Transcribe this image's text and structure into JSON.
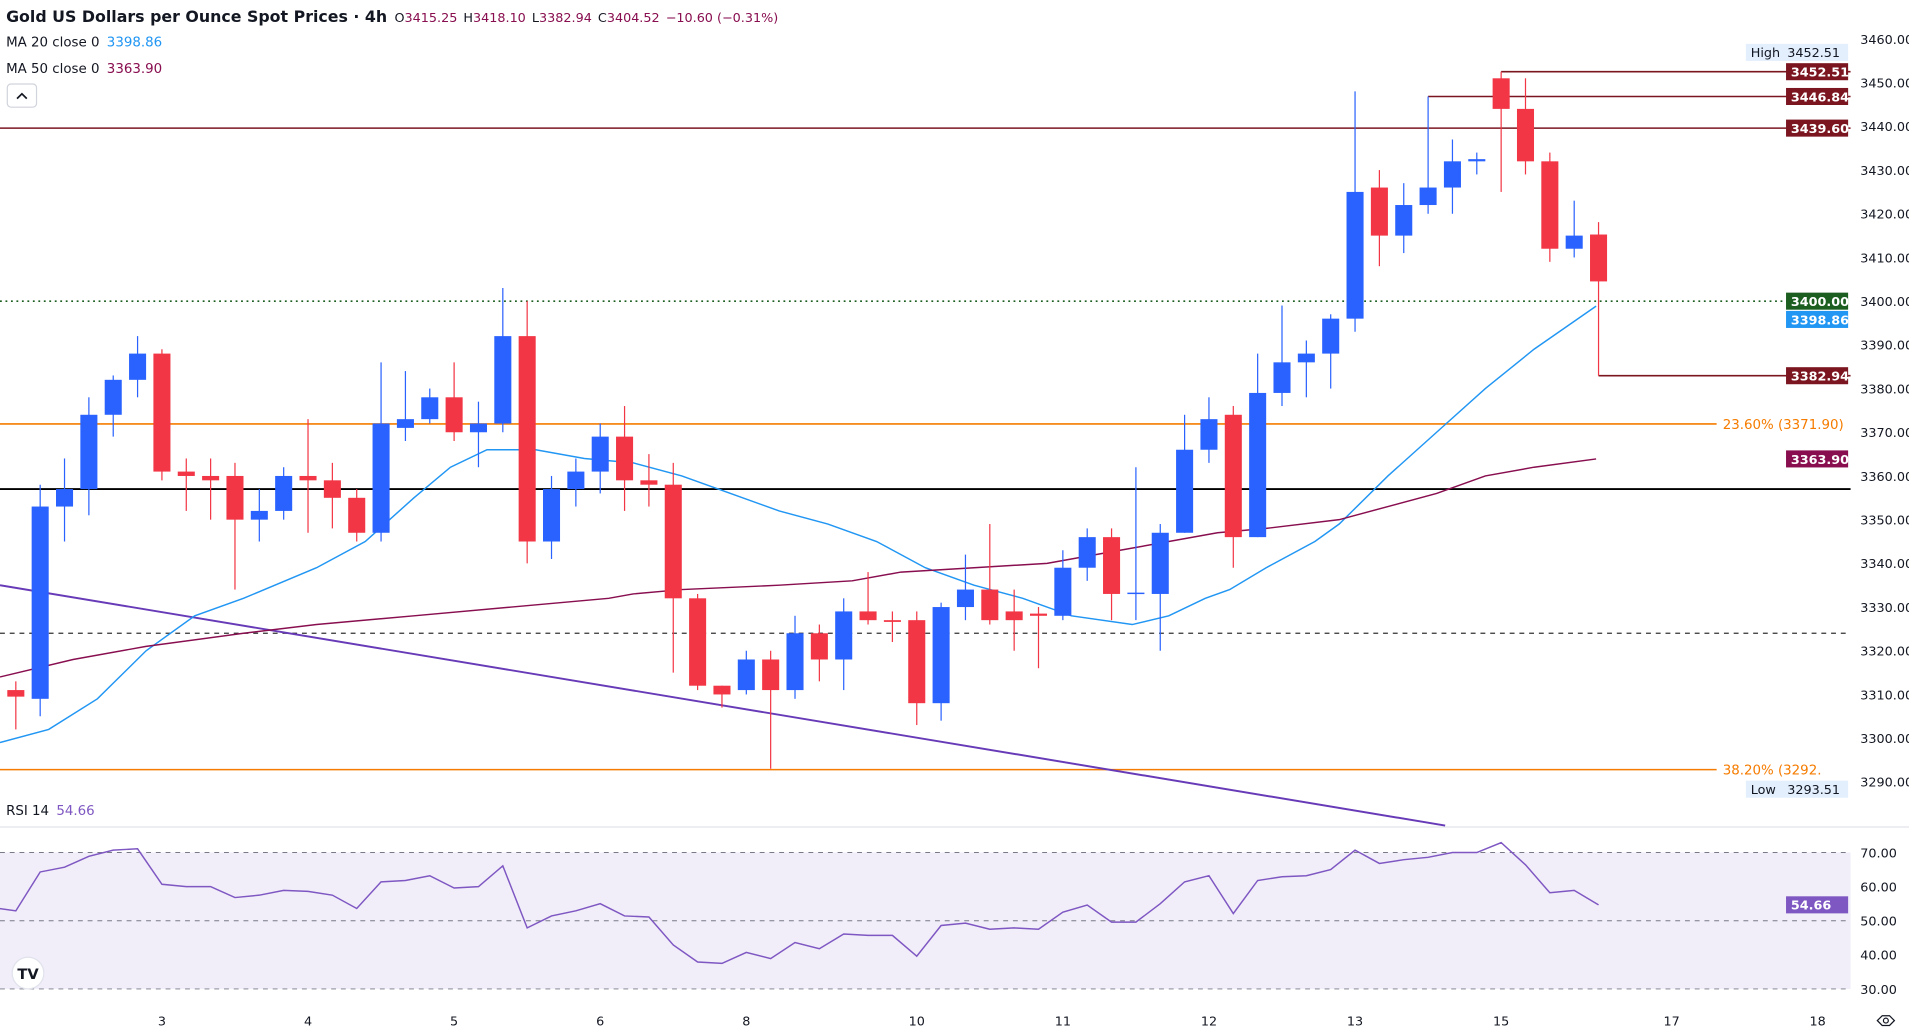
{
  "header": {
    "title": "Gold US Dollars per Ounce Spot Prices · 4h",
    "o_label": "O",
    "o_value": "3415.25",
    "h_label": "H",
    "h_value": "3418.10",
    "l_label": "L",
    "l_value": "3382.94",
    "c_label": "C",
    "c_value": "3404.52",
    "change": "−10.60 (−0.31%)"
  },
  "legend": {
    "ma20_label": "MA 20 close 0",
    "ma20_value": "3398.86",
    "ma50_label": "MA 50 close 0",
    "ma50_value": "3363.90",
    "collapse_icon": "chevron-up-icon"
  },
  "colors": {
    "up": "#2962ff",
    "down": "#f23645",
    "ma20": "#2196f3",
    "ma50": "#880e4f",
    "fib": "#f57c00",
    "resistance": "#7b1621",
    "trend": "#673ab7",
    "rsi": "#7e57c2",
    "support_green": "#1b5e20"
  },
  "chart_data": {
    "type": "candlestick",
    "price_axis": {
      "min": 3290,
      "max": 3460,
      "step": 10,
      "ticks": [
        "3460.00",
        "3450.00",
        "3440.00",
        "3430.00",
        "3420.00",
        "3410.00",
        "3400.00",
        "3390.00",
        "3380.00",
        "3370.00",
        "3360.00",
        "3350.00",
        "3340.00",
        "3330.00",
        "3320.00",
        "3310.00",
        "3300.00",
        "3290.00"
      ]
    },
    "x_labels": [
      {
        "bar": 7,
        "text": "3"
      },
      {
        "bar": 13,
        "text": "4"
      },
      {
        "bar": 19,
        "text": "5"
      },
      {
        "bar": 25,
        "text": "6"
      },
      {
        "bar": 31,
        "text": "8"
      },
      {
        "bar": 38,
        "text": "10"
      },
      {
        "bar": 44,
        "text": "11"
      },
      {
        "bar": 50,
        "text": "12"
      },
      {
        "bar": 56,
        "text": "13"
      },
      {
        "bar": 62,
        "text": "15"
      },
      {
        "bar": 69,
        "text": "17"
      },
      {
        "bar": 75,
        "text": "18"
      }
    ],
    "ohlc": [
      [
        3299,
        3312,
        3298,
        3311
      ],
      [
        3311,
        3313,
        3302,
        3309.5
      ],
      [
        3309,
        3358,
        3305,
        3353
      ],
      [
        3353,
        3364,
        3345,
        3357
      ],
      [
        3357,
        3378,
        3351,
        3374
      ],
      [
        3374,
        3383,
        3369,
        3382
      ],
      [
        3382,
        3392,
        3378,
        3388
      ],
      [
        3388,
        3389,
        3359,
        3361
      ],
      [
        3361,
        3364,
        3352,
        3360
      ],
      [
        3360,
        3364,
        3350,
        3359
      ],
      [
        3360,
        3363,
        3334,
        3350
      ],
      [
        3350,
        3357,
        3345,
        3352
      ],
      [
        3352,
        3362,
        3350,
        3360
      ],
      [
        3360,
        3373,
        3347,
        3359
      ],
      [
        3359,
        3363,
        3348,
        3355
      ],
      [
        3355,
        3357,
        3345,
        3347
      ],
      [
        3347,
        3386,
        3345,
        3372
      ],
      [
        3371,
        3384,
        3368,
        3373
      ],
      [
        3373,
        3380,
        3372,
        3378
      ],
      [
        3378,
        3386,
        3368,
        3370
      ],
      [
        3370,
        3377,
        3362,
        3372
      ],
      [
        3372,
        3403,
        3370,
        3392
      ],
      [
        3392,
        3400,
        3340,
        3345
      ],
      [
        3345,
        3360,
        3341,
        3357
      ],
      [
        3357,
        3364,
        3353,
        3361
      ],
      [
        3361,
        3372,
        3356,
        3369
      ],
      [
        3369,
        3376,
        3352,
        3359
      ],
      [
        3359,
        3365,
        3353,
        3358
      ],
      [
        3358,
        3363,
        3315,
        3332
      ],
      [
        3332,
        3333,
        3311,
        3312
      ],
      [
        3312,
        3312,
        3307,
        3310
      ],
      [
        3311,
        3320,
        3310,
        3318
      ],
      [
        3318,
        3320,
        3293,
        3311
      ],
      [
        3311,
        3328,
        3309,
        3324
      ],
      [
        3324,
        3326,
        3313,
        3318
      ],
      [
        3318,
        3332,
        3311,
        3329
      ],
      [
        3329,
        3338,
        3326,
        3327
      ],
      [
        3327,
        3329,
        3322,
        3326.6
      ],
      [
        3327,
        3329,
        3303,
        3308
      ],
      [
        3308,
        3331,
        3304,
        3330
      ],
      [
        3330,
        3342,
        3327,
        3334
      ],
      [
        3334,
        3349,
        3326,
        3327
      ],
      [
        3329,
        3334,
        3320,
        3327
      ],
      [
        3328.5,
        3330,
        3316,
        3328
      ],
      [
        3328,
        3343,
        3327,
        3339
      ],
      [
        3339,
        3348,
        3336,
        3346
      ],
      [
        3346,
        3348,
        3327,
        3333
      ],
      [
        3333,
        3362,
        3327,
        3333.3
      ],
      [
        3333,
        3349,
        3320,
        3347
      ],
      [
        3347,
        3374,
        3347,
        3366
      ],
      [
        3366,
        3378,
        3363,
        3373
      ],
      [
        3374,
        3376,
        3339,
        3346
      ],
      [
        3346,
        3388,
        3346,
        3379
      ],
      [
        3379,
        3399,
        3376,
        3386
      ],
      [
        3386,
        3391,
        3378,
        3388
      ],
      [
        3388,
        3397,
        3380,
        3396
      ],
      [
        3396,
        3448,
        3393,
        3425
      ],
      [
        3426,
        3430,
        3408,
        3415
      ],
      [
        3415,
        3427,
        3411,
        3422
      ],
      [
        3422,
        3446.84,
        3420,
        3426
      ],
      [
        3426,
        3437,
        3420,
        3432
      ],
      [
        3432,
        3434,
        3429,
        3432.5
      ],
      [
        3451,
        3452.51,
        3425,
        3444
      ],
      [
        3444,
        3451,
        3429,
        3432
      ],
      [
        3432,
        3434,
        3409,
        3412
      ],
      [
        3412,
        3423,
        3410,
        3415
      ],
      [
        3415.25,
        3418.1,
        3382.94,
        3404.52
      ]
    ],
    "ma20": [
      [
        0.35,
        3299
      ],
      [
        2.35,
        3302
      ],
      [
        4.35,
        3309
      ],
      [
        6.35,
        3320
      ],
      [
        8.35,
        3328
      ],
      [
        10.35,
        3332
      ],
      [
        13.35,
        3339
      ],
      [
        15.35,
        3345
      ],
      [
        17.35,
        3355
      ],
      [
        18.85,
        3362
      ],
      [
        20.35,
        3366
      ],
      [
        22.35,
        3366
      ],
      [
        24.35,
        3364
      ],
      [
        26.35,
        3363
      ],
      [
        28.35,
        3360
      ],
      [
        30.35,
        3356
      ],
      [
        32.35,
        3352
      ],
      [
        34.35,
        3349
      ],
      [
        36.35,
        3345
      ],
      [
        38.35,
        3339
      ],
      [
        40.35,
        3335
      ],
      [
        42.35,
        3332
      ],
      [
        44.35,
        3328
      ],
      [
        46.85,
        3326
      ],
      [
        48.35,
        3328
      ],
      [
        49.85,
        3332
      ],
      [
        50.85,
        3334
      ],
      [
        52.35,
        3339
      ],
      [
        54.35,
        3345
      ],
      [
        55.35,
        3349
      ],
      [
        57.35,
        3360
      ],
      [
        59.35,
        3370
      ],
      [
        61.35,
        3380
      ],
      [
        63.35,
        3389
      ],
      [
        65.9,
        3398.86
      ]
    ],
    "ma50": [
      [
        0.35,
        3314
      ],
      [
        3.35,
        3318
      ],
      [
        6.35,
        3321
      ],
      [
        10.35,
        3324
      ],
      [
        13.35,
        3326
      ],
      [
        17.35,
        3328
      ],
      [
        21.35,
        3330
      ],
      [
        25.35,
        3332
      ],
      [
        26.35,
        3333
      ],
      [
        28.35,
        3334
      ],
      [
        32.35,
        3335
      ],
      [
        35.35,
        3336
      ],
      [
        37.35,
        3338
      ],
      [
        40.35,
        3339
      ],
      [
        43.35,
        3340
      ],
      [
        46.35,
        3343
      ],
      [
        48.35,
        3345
      ],
      [
        50.35,
        3347
      ],
      [
        52.35,
        3348
      ],
      [
        55.35,
        3350
      ],
      [
        57.35,
        3353
      ],
      [
        59.35,
        3356
      ],
      [
        61.35,
        3360
      ],
      [
        63.35,
        3362
      ],
      [
        65.9,
        3363.9
      ]
    ],
    "trendline": [
      [
        0.35,
        3335
      ],
      [
        59.7,
        3280
      ]
    ],
    "levels": {
      "resistance_1": "3439.60",
      "resistance_2": "3446.84",
      "resistance_3": "3452.51",
      "last_low": "3382.94",
      "round_level": "3400.00",
      "horizontal_support": 3357,
      "dashed_support": 3324
    },
    "fib": [
      {
        "label": "23.60% (3371.90)",
        "price": 3371.9
      },
      {
        "label": "38.20% (3292.",
        "price": 3292.8
      }
    ],
    "high_marker": {
      "label": "High",
      "value": "3452.51"
    },
    "low_marker": {
      "label": "Low",
      "value": "3293.51"
    },
    "ma20_tag": "3398.86",
    "ma50_tag": "3363.90",
    "rsi": {
      "label": "RSI 14",
      "value": "54.66",
      "ticks": [
        "70.00",
        "60.00",
        "50.00",
        "40.00",
        "30.00"
      ],
      "min": 30,
      "max": 70,
      "values": [
        53.9,
        52.9,
        64.3,
        65.7,
        68.9,
        70.7,
        71.1,
        60.7,
        60,
        60,
        56.8,
        57.5,
        58.9,
        58.6,
        57.5,
        53.6,
        61.4,
        61.8,
        63.2,
        59.6,
        60,
        66.1,
        47.9,
        51.4,
        52.9,
        55,
        51.4,
        51.1,
        42.9,
        37.9,
        37.5,
        40.7,
        38.9,
        43.6,
        41.8,
        46.1,
        45.7,
        45.7,
        39.6,
        48.6,
        49.3,
        47.5,
        47.9,
        47.5,
        52.5,
        54.6,
        49.6,
        49.6,
        55,
        61.4,
        63.2,
        52.1,
        61.8,
        62.9,
        63.2,
        65,
        70.7,
        66.8,
        67.9,
        68.6,
        70,
        70,
        72.9,
        66.4,
        58.2,
        58.9,
        54.66
      ]
    }
  }
}
